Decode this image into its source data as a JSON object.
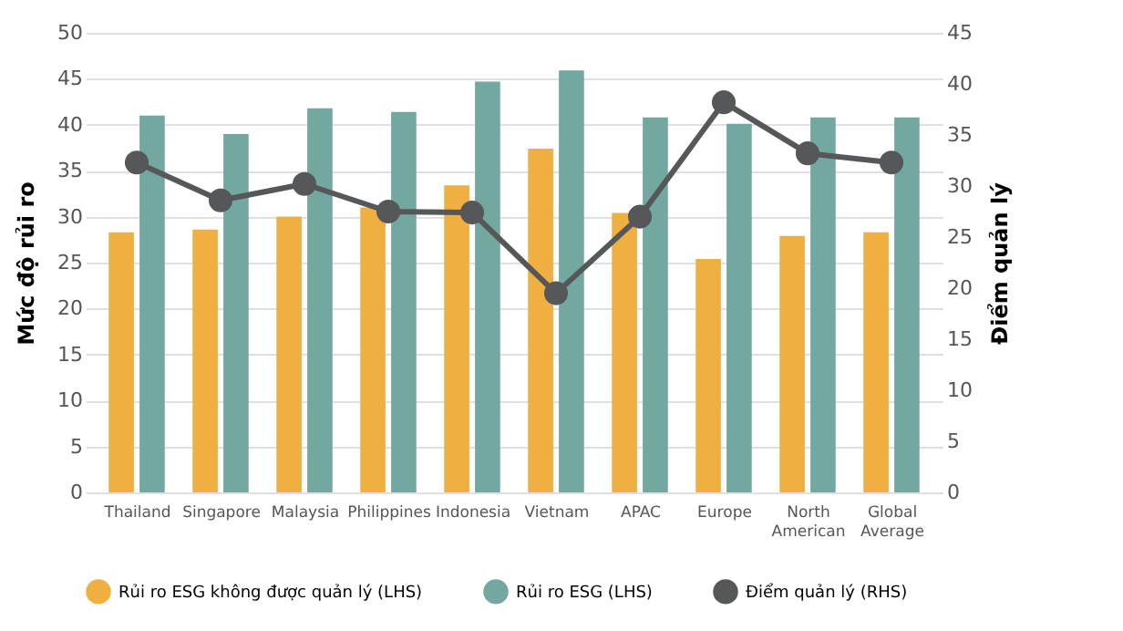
{
  "chart_data": {
    "type": "bar",
    "categories": [
      "Thailand",
      "Singapore",
      "Malaysia",
      "Philippines",
      "Indonesia",
      "Vietnam",
      "APAC",
      "Europe",
      "North American",
      "Global Average"
    ],
    "ylabel": "Mức độ rủi ro",
    "y2label": "Điểm quản lý",
    "ylim": [
      0,
      50
    ],
    "yticks": [
      0,
      5,
      10,
      15,
      20,
      25,
      30,
      35,
      40,
      45,
      50
    ],
    "y2lim": [
      0,
      45
    ],
    "y2ticks": [
      0,
      5,
      10,
      15,
      20,
      25,
      30,
      35,
      40,
      45
    ],
    "grid": "y",
    "legend": "bottom",
    "series": [
      {
        "name": "Rủi ro ESG không được quản lý (LHS)",
        "color": "#f0b041",
        "values": [
          28.3,
          28.6,
          30.0,
          31.0,
          33.4,
          37.4,
          30.4,
          25.4,
          27.9,
          28.3
        ]
      },
      {
        "name": "Rủi ro ESG (LHS)",
        "color": "#72a8a0",
        "values": [
          41.0,
          39.0,
          41.8,
          41.4,
          44.7,
          45.9,
          40.8,
          40.1,
          40.8,
          40.8
        ]
      },
      {
        "name": "Điểm quản lý (RHS)",
        "type": "line",
        "axis": "y2",
        "color": "#555759",
        "marker": "circle",
        "values": [
          32.3,
          28.6,
          30.2,
          27.5,
          27.4,
          19.5,
          27.0,
          38.2,
          33.2,
          32.3
        ]
      }
    ]
  }
}
